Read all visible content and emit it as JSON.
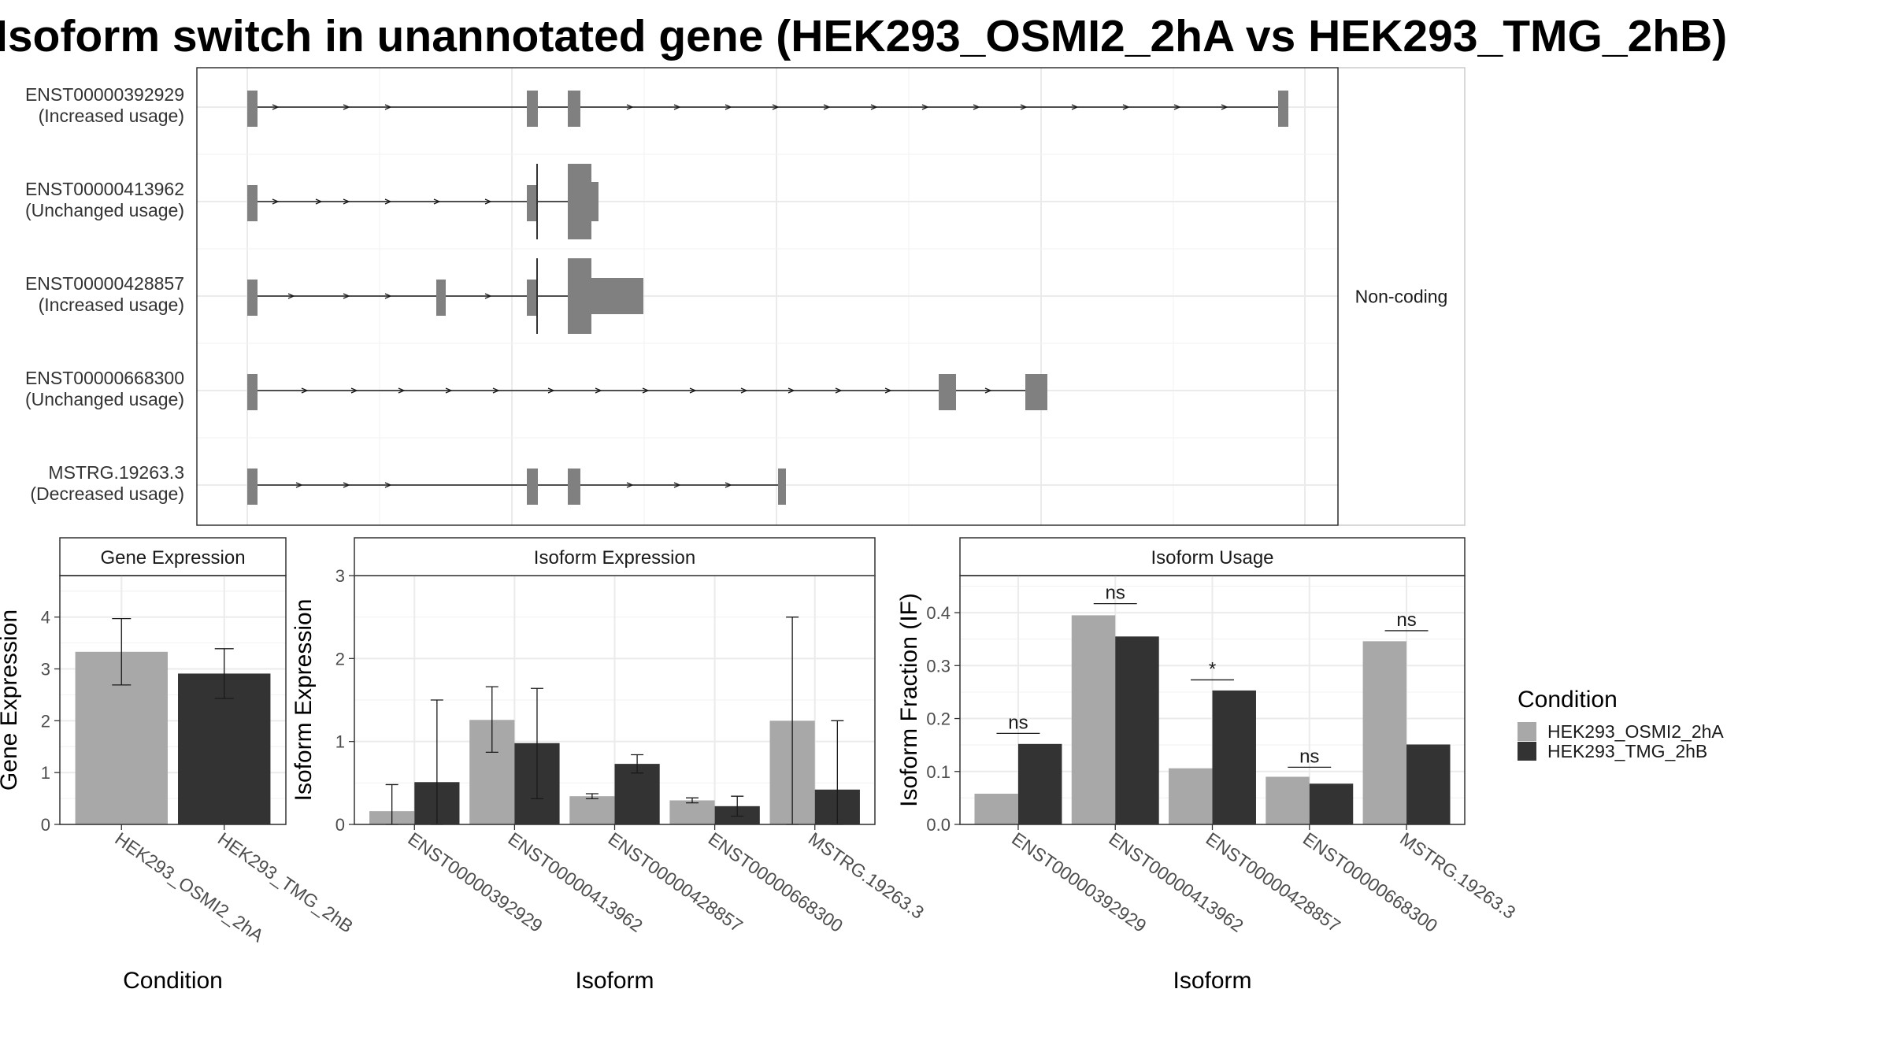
{
  "title": "Isoform switch in unannotated gene (HEK293_OSMI2_2hA vs HEK293_TMG_2hB)",
  "colors": {
    "cond1": "#a8a8a8",
    "cond2": "#333333",
    "exon": "#808080",
    "strip": "#ececec",
    "grid": "#ebebeb"
  },
  "chart_data": [
    {
      "type": "gene_structure",
      "facet_label": "Non-coding",
      "transcripts": [
        {
          "id": "ENST00000392929",
          "usage": "(Increased usage)"
        },
        {
          "id": "ENST00000413962",
          "usage": "(Unchanged usage)"
        },
        {
          "id": "ENST00000428857",
          "usage": "(Increased usage)"
        },
        {
          "id": "ENST00000668300",
          "usage": "(Unchanged usage)"
        },
        {
          "id": "MSTRG.19263.3",
          "usage": "(Decreased usage)"
        }
      ]
    },
    {
      "type": "bar",
      "title": "Gene Expression",
      "xlabel": "Condition",
      "ylabel": "Gene Expression",
      "ylim": [
        0,
        4.8
      ],
      "yticks": [
        0,
        1,
        2,
        3,
        4
      ],
      "categories": [
        "HEK293_OSMI2_2hA",
        "HEK293_TMG_2hB"
      ],
      "values": [
        3.33,
        2.91
      ],
      "errors": [
        [
          2.69,
          3.97
        ],
        [
          2.43,
          3.39
        ]
      ]
    },
    {
      "type": "bar",
      "title": "Isoform Expression",
      "xlabel": "Isoform",
      "ylabel": "Isoform Expression",
      "ylim": [
        0,
        3
      ],
      "yticks": [
        0,
        1,
        2,
        3
      ],
      "categories": [
        "ENST00000392929",
        "ENST00000413962",
        "ENST00000428857",
        "ENST00000668300",
        "MSTRG.19263.3"
      ],
      "series": [
        {
          "name": "HEK293_OSMI2_2hA",
          "values": [
            0.16,
            1.26,
            0.34,
            0.29,
            1.25
          ],
          "errors": [
            [
              0,
              0.48
            ],
            [
              0.87,
              1.66
            ],
            [
              0.31,
              0.37
            ],
            [
              0.26,
              0.32
            ],
            [
              0,
              2.5
            ]
          ]
        },
        {
          "name": "HEK293_TMG_2hB",
          "values": [
            0.51,
            0.98,
            0.73,
            0.22,
            0.42
          ],
          "errors": [
            [
              0,
              1.5
            ],
            [
              0.31,
              1.64
            ],
            [
              0.62,
              0.84
            ],
            [
              0.1,
              0.34
            ],
            [
              0,
              1.25
            ]
          ]
        }
      ]
    },
    {
      "type": "bar",
      "title": "Isoform Usage",
      "xlabel": "Isoform",
      "ylabel": "Isoform Fraction (IF)",
      "ylim": [
        0,
        0.47
      ],
      "yticks": [
        0.0,
        0.1,
        0.2,
        0.3,
        0.4
      ],
      "categories": [
        "ENST00000392929",
        "ENST00000413962",
        "ENST00000428857",
        "ENST00000668300",
        "MSTRG.19263.3"
      ],
      "series": [
        {
          "name": "HEK293_OSMI2_2hA",
          "values": [
            0.058,
            0.395,
            0.106,
            0.09,
            0.346
          ]
        },
        {
          "name": "HEK293_TMG_2hB",
          "values": [
            0.152,
            0.355,
            0.253,
            0.077,
            0.151
          ]
        }
      ],
      "significance": [
        "ns",
        "ns",
        "*",
        "ns",
        "ns"
      ],
      "sig_heights": [
        0.172,
        0.417,
        0.273,
        0.108,
        0.366
      ]
    }
  ],
  "legend": {
    "title": "Condition",
    "items": [
      "HEK293_OSMI2_2hA",
      "HEK293_TMG_2hB"
    ]
  }
}
